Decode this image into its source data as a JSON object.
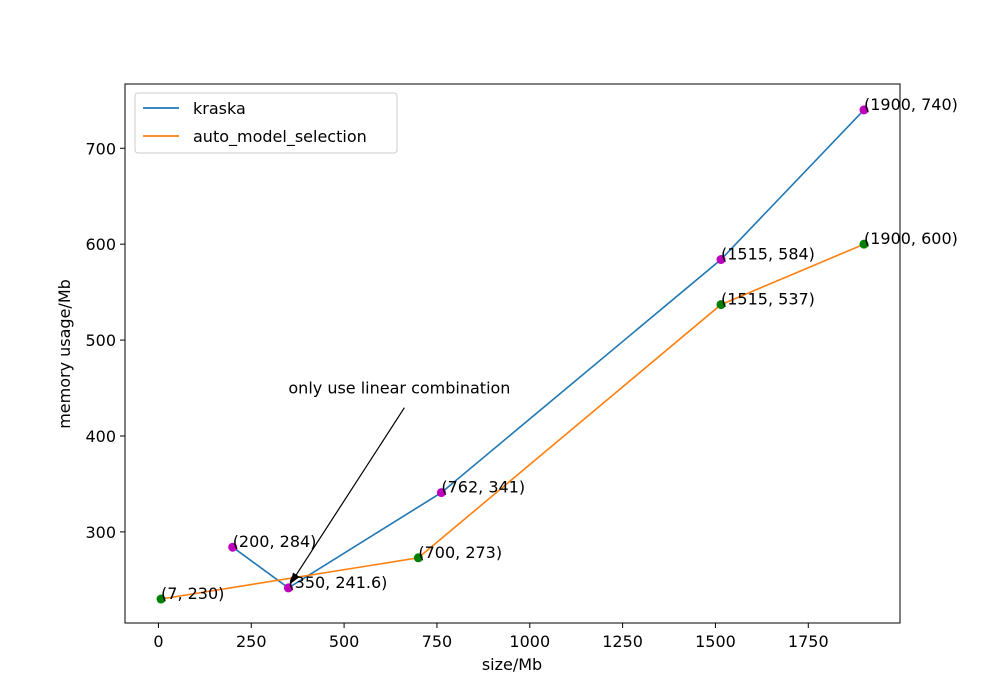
{
  "chart_data": {
    "type": "line",
    "title": "",
    "xlabel": "size/Mb",
    "ylabel": "memory usage/Mb",
    "xlim": [
      -90,
      1997
    ],
    "ylim": [
      205,
      767
    ],
    "xticks": [
      0,
      250,
      500,
      750,
      1000,
      1250,
      1500,
      1750
    ],
    "yticks": [
      300,
      400,
      500,
      600,
      700
    ],
    "grid": false,
    "legend_position": "top-left",
    "series": [
      {
        "name": "kraska",
        "color": "#1f77b4",
        "marker_color": "#bf00bf",
        "points": [
          {
            "x": 200,
            "y": 284,
            "label": "(200, 284)"
          },
          {
            "x": 350,
            "y": 241.6,
            "label": "(350, 241.6)"
          },
          {
            "x": 762,
            "y": 341,
            "label": "(762, 341)"
          },
          {
            "x": 1515,
            "y": 584,
            "label": "(1515, 584)"
          },
          {
            "x": 1900,
            "y": 740,
            "label": "(1900, 740)"
          }
        ]
      },
      {
        "name": "auto_model_selection",
        "color": "#ff7f0e",
        "marker_color": "#008000",
        "points": [
          {
            "x": 7,
            "y": 230,
            "label": "(7, 230)"
          },
          {
            "x": 700,
            "y": 273,
            "label": "(700, 273)"
          },
          {
            "x": 1515,
            "y": 537,
            "label": "(1515, 537)"
          },
          {
            "x": 1900,
            "y": 600,
            "label": "(1900, 600)"
          }
        ]
      }
    ],
    "annotations": [
      {
        "text": "only use linear combination",
        "xy": [
          350,
          241.6
        ],
        "xytext": [
          350,
          442
        ]
      }
    ]
  }
}
